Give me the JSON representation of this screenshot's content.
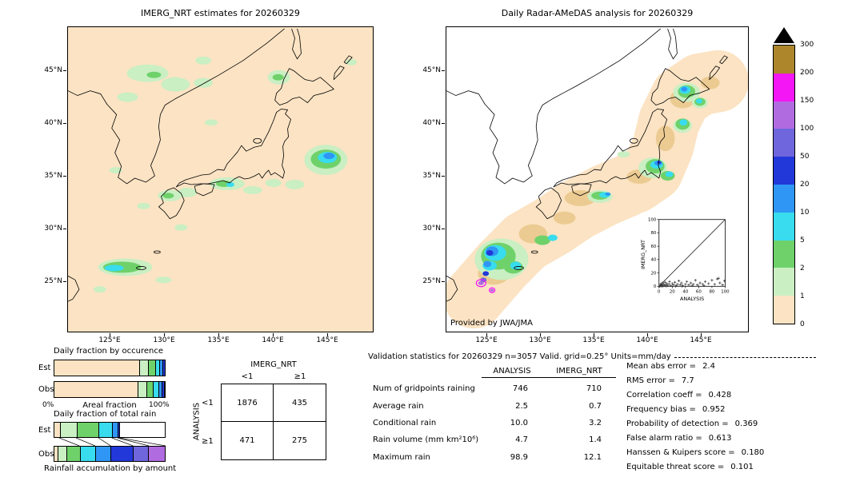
{
  "left_map": {
    "title": "IMERG_NRT estimates for 20260329"
  },
  "right_map": {
    "title": "Daily Radar-AMeDAS analysis for 20260329",
    "credit": "Provided by JWA/JMA"
  },
  "axes": {
    "lat_labels": [
      "45°N",
      "40°N",
      "35°N",
      "30°N",
      "25°N"
    ],
    "lon_labels": [
      "125°E",
      "130°E",
      "135°E",
      "140°E",
      "145°E"
    ]
  },
  "stats": {
    "header": "Validation statistics for 20260329  n=3057 Valid. grid=0.25° Units=mm/day",
    "columns": [
      "ANALYSIS",
      "IMERG_NRT"
    ],
    "rows": [
      {
        "label": "Num of gridpoints raining",
        "analysis": "746",
        "imerg": "710"
      },
      {
        "label": "Average rain",
        "analysis": "2.5",
        "imerg": "0.7"
      },
      {
        "label": "Conditional rain",
        "analysis": "10.0",
        "imerg": "3.2"
      },
      {
        "label": "Rain volume (mm km²10⁶)",
        "analysis": "4.7",
        "imerg": "1.4"
      },
      {
        "label": "Maximum rain",
        "analysis": "98.9",
        "imerg": "12.1"
      }
    ],
    "metrics": [
      {
        "label": "Mean abs error =",
        "value": "2.4"
      },
      {
        "label": "RMS error =",
        "value": "7.7"
      },
      {
        "label": "Correlation coeff =",
        "value": "0.428"
      },
      {
        "label": "Frequency bias =",
        "value": "0.952"
      },
      {
        "label": "Probability of detection =",
        "value": "0.369"
      },
      {
        "label": "False alarm ratio =",
        "value": "0.613"
      },
      {
        "label": "Hanssen & Kuipers score =",
        "value": "0.180"
      },
      {
        "label": "Equitable threat score =",
        "value": "0.101"
      }
    ]
  },
  "chart_data": [
    {
      "id": "daily_fraction_by_occurrence",
      "type": "bar",
      "title": "Daily fraction by occurence",
      "orientation": "horizontal-stacked",
      "rows": [
        "Est",
        "Obs"
      ],
      "x_min_label": "0%",
      "x_axis_label": "Areal fraction",
      "x_max_label": "100%",
      "series": [
        {
          "name": "Est",
          "segments": [
            {
              "color": "#fbe3c3",
              "pct": 77
            },
            {
              "color": "#c9efc3",
              "pct": 8
            },
            {
              "color": "#6fd16a",
              "pct": 6
            },
            {
              "color": "#38dcee",
              "pct": 4
            },
            {
              "color": "#2f96f5",
              "pct": 3
            },
            {
              "color": "#2338d9",
              "pct": 2
            }
          ]
        },
        {
          "name": "Obs",
          "segments": [
            {
              "color": "#fbe3c3",
              "pct": 75
            },
            {
              "color": "#c9efc3",
              "pct": 8
            },
            {
              "color": "#6fd16a",
              "pct": 6
            },
            {
              "color": "#38dcee",
              "pct": 5
            },
            {
              "color": "#2f96f5",
              "pct": 3
            },
            {
              "color": "#2338d9",
              "pct": 2
            },
            {
              "color": "#6f66dd",
              "pct": 1
            }
          ]
        }
      ]
    },
    {
      "id": "daily_fraction_of_total_rain",
      "type": "bar",
      "title": "Daily fraction of total rain",
      "orientation": "horizontal-stacked",
      "rows": [
        "Est",
        "Obs"
      ],
      "footer": "Rainfall accumulation by amount",
      "series": [
        {
          "name": "Est",
          "segments": [
            {
              "color": "#fbe3c3",
              "pct": 5
            },
            {
              "color": "#c9efc3",
              "pct": 15
            },
            {
              "color": "#6fd16a",
              "pct": 20
            },
            {
              "color": "#38dcee",
              "pct": 12
            },
            {
              "color": "#2f96f5",
              "pct": 5
            },
            {
              "color": "#2338d9",
              "pct": 2
            },
            {
              "color": "#ffffff",
              "pct": 41
            }
          ]
        },
        {
          "name": "Obs",
          "segments": [
            {
              "color": "#fbe3c3",
              "pct": 3
            },
            {
              "color": "#c9efc3",
              "pct": 8
            },
            {
              "color": "#6fd16a",
              "pct": 12
            },
            {
              "color": "#38dcee",
              "pct": 14
            },
            {
              "color": "#2f96f5",
              "pct": 14
            },
            {
              "color": "#2338d9",
              "pct": 20
            },
            {
              "color": "#6f66dd",
              "pct": 14
            },
            {
              "color": "#b16be0",
              "pct": 15
            }
          ]
        }
      ]
    },
    {
      "id": "contingency_table",
      "type": "table",
      "col_group": "IMERG_NRT",
      "row_group": "ANALYSIS",
      "col_labels": [
        "<1",
        "≥1"
      ],
      "row_labels": [
        "<1",
        "≥1"
      ],
      "values": [
        [
          "1876",
          "435"
        ],
        [
          "471",
          "275"
        ]
      ]
    },
    {
      "id": "inset_scatter",
      "type": "scatter",
      "xlabel": "ANALYSIS",
      "ylabel": "IMERG_NRT",
      "xlim": [
        0,
        100
      ],
      "ylim": [
        0,
        100
      ],
      "xticks": [
        "0",
        "20",
        "40",
        "60",
        "80",
        "100"
      ],
      "yticks": [
        "0",
        "20",
        "40",
        "60",
        "80",
        "100"
      ],
      "diagonal": true,
      "points": [
        [
          1,
          0
        ],
        [
          2,
          1
        ],
        [
          2,
          3
        ],
        [
          3,
          0
        ],
        [
          4,
          2
        ],
        [
          5,
          1
        ],
        [
          5,
          5
        ],
        [
          6,
          0
        ],
        [
          7,
          3
        ],
        [
          8,
          1
        ],
        [
          9,
          6
        ],
        [
          10,
          2
        ],
        [
          11,
          0
        ],
        [
          12,
          4
        ],
        [
          13,
          1
        ],
        [
          15,
          3
        ],
        [
          16,
          7
        ],
        [
          18,
          1
        ],
        [
          20,
          4
        ],
        [
          22,
          2
        ],
        [
          24,
          6
        ],
        [
          25,
          0
        ],
        [
          26,
          1
        ],
        [
          28,
          3
        ],
        [
          30,
          8
        ],
        [
          32,
          2
        ],
        [
          34,
          5
        ],
        [
          35,
          0
        ],
        [
          36,
          1
        ],
        [
          40,
          3
        ],
        [
          42,
          7
        ],
        [
          45,
          2
        ],
        [
          48,
          5
        ],
        [
          50,
          1
        ],
        [
          52,
          3
        ],
        [
          55,
          9
        ],
        [
          58,
          2
        ],
        [
          60,
          0
        ],
        [
          62,
          5
        ],
        [
          66,
          3
        ],
        [
          68,
          1
        ],
        [
          70,
          7
        ],
        [
          75,
          4
        ],
        [
          80,
          9
        ],
        [
          84,
          3
        ],
        [
          88,
          11
        ],
        [
          90,
          12
        ],
        [
          92,
          5
        ],
        [
          96,
          2
        ],
        [
          99,
          8
        ]
      ]
    },
    {
      "id": "colorbar",
      "type": "heatmap",
      "units": "mm/day",
      "labels": [
        "300",
        "200",
        "150",
        "100",
        "50",
        "20",
        "10",
        "5",
        "2",
        "1",
        "0"
      ],
      "colors": [
        "#ad862b",
        "#f516f5",
        "#b16be0",
        "#6f66dd",
        "#2338d9",
        "#2f96f5",
        "#38dcee",
        "#6fd16a",
        "#c9efc3",
        "#fbe3c3"
      ]
    }
  ]
}
